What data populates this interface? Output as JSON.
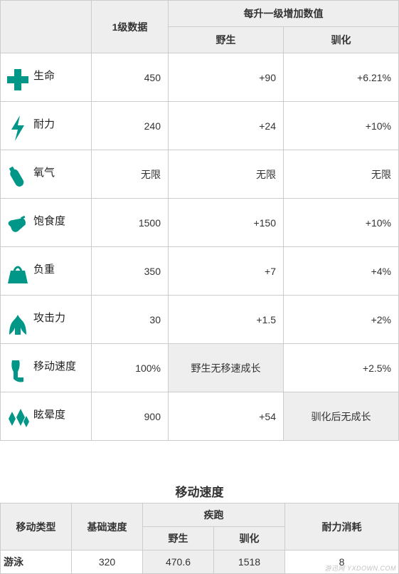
{
  "stats_table": {
    "header": {
      "col_lvl1": "1级数据",
      "col_per_level": "每升一级增加数值",
      "col_wild": "野生",
      "col_tamed": "驯化"
    },
    "icon_color": "#009688",
    "rows": [
      {
        "icon": "health",
        "label": "生命",
        "lvl1": "450",
        "wild": "+90",
        "tamed": "+6.21%",
        "wild_shaded": false,
        "tamed_shaded": false
      },
      {
        "icon": "stamina",
        "label": "耐力",
        "lvl1": "240",
        "wild": "+24",
        "tamed": "+10%",
        "wild_shaded": false,
        "tamed_shaded": false
      },
      {
        "icon": "oxygen",
        "label": "氧气",
        "lvl1": "无限",
        "wild": "无限",
        "tamed": "无限",
        "wild_shaded": false,
        "tamed_shaded": false
      },
      {
        "icon": "food",
        "label": "饱食度",
        "lvl1": "1500",
        "wild": "+150",
        "tamed": "+10%",
        "wild_shaded": false,
        "tamed_shaded": false
      },
      {
        "icon": "weight",
        "label": "负重",
        "lvl1": "350",
        "wild": "+7",
        "tamed": "+4%",
        "wild_shaded": false,
        "tamed_shaded": false
      },
      {
        "icon": "melee",
        "label": "攻击力",
        "lvl1": "30",
        "wild": "+1.5",
        "tamed": "+2%",
        "wild_shaded": false,
        "tamed_shaded": false
      },
      {
        "icon": "speed",
        "label": "移动速度",
        "lvl1": "100%",
        "wild": "野生无移速成长",
        "tamed": "+2.5%",
        "wild_shaded": true,
        "tamed_shaded": false
      },
      {
        "icon": "torpor",
        "label": "眩晕度",
        "lvl1": "900",
        "wild": "+54",
        "tamed": "驯化后无成长",
        "wild_shaded": false,
        "tamed_shaded": true
      }
    ]
  },
  "speed_table": {
    "title": "移动速度",
    "headers": {
      "move_type": "移动类型",
      "base_speed": "基础速度",
      "sprint": "疾跑",
      "wild": "野生",
      "tamed": "驯化",
      "stamina_drain": "耐力消耗"
    },
    "row": {
      "type": "游泳",
      "base": "320",
      "sprint_wild": "470.6",
      "sprint_tamed": "1518",
      "drain": "8"
    }
  },
  "watermark": "游迅网\nYXDOWN.COM"
}
